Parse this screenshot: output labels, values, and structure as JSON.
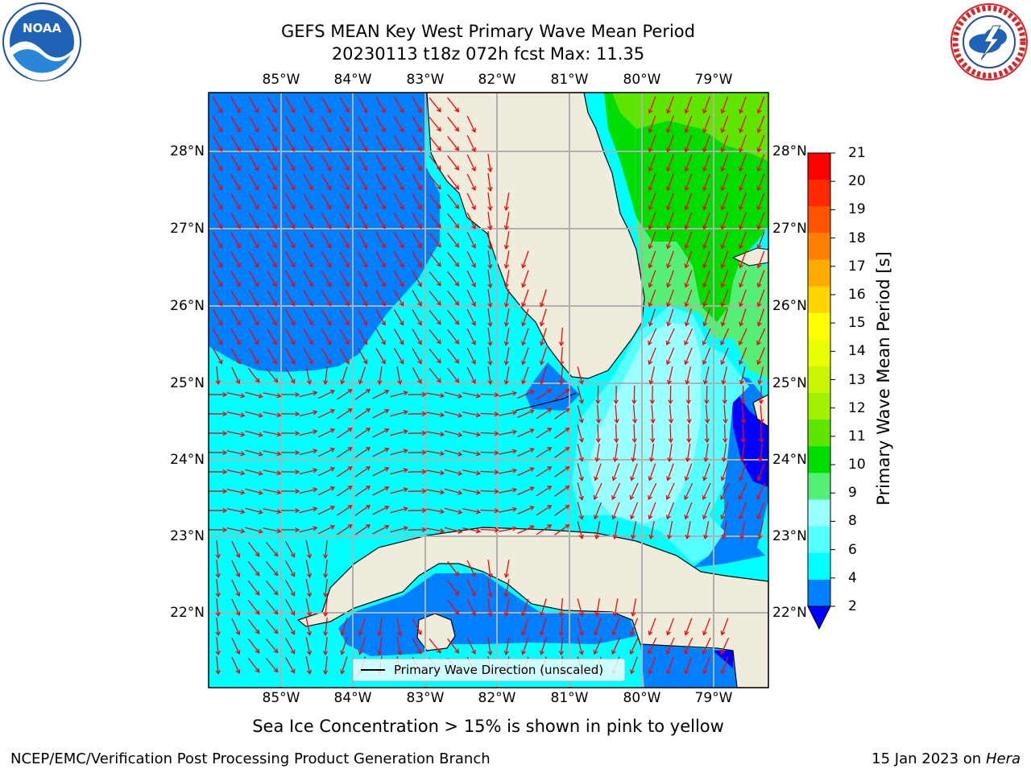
{
  "header": {
    "title_line1": "GEFS MEAN Key West Primary Wave Mean Period",
    "title_line2": "20230113 t18z 072h fcst   Max: 11.35"
  },
  "logos": {
    "left": {
      "icon": "noaa-logo-icon",
      "text": "NOAA"
    },
    "right": {
      "icon": "national-weather-service-logo-icon",
      "text": "NATIONAL WEATHER SERVICE"
    }
  },
  "map": {
    "lon_ticks": [
      "85°W",
      "84°W",
      "83°W",
      "82°W",
      "81°W",
      "80°W",
      "79°W"
    ],
    "lat_ticks": [
      "28°N",
      "27°N",
      "26°N",
      "25°N",
      "24°N",
      "23°N",
      "22°N"
    ],
    "legend_label": "Primary Wave Direction (unscaled)",
    "vector_color": "#ff0000"
  },
  "colorbar": {
    "label": "Primary Wave Mean Period [s]",
    "ticks": [
      "21",
      "20",
      "19",
      "18",
      "17",
      "16",
      "15",
      "14",
      "13",
      "12",
      "11",
      "10",
      "9",
      "8",
      "6",
      "4",
      "2"
    ],
    "colors": [
      "#ff0000",
      "#ff2a00",
      "#ff5500",
      "#ff8000",
      "#ffaa00",
      "#ffd500",
      "#ffff00",
      "#eaff00",
      "#c8f500",
      "#a0f000",
      "#5fe600",
      "#00dd00",
      "#55ee77",
      "#99ffff",
      "#55ffff",
      "#00ffff",
      "#0080ff"
    ],
    "under_color": "#0000ff"
  },
  "palette": {
    "land": "#efecdc",
    "coast": "#000000",
    "grid": "#b0b0b0"
  },
  "footer": {
    "note": "Sea Ice Concentration > 15% is shown in pink to yellow",
    "credit_left": "NCEP/EMC/Verification Post Processing Product Generation Branch",
    "date": "15 Jan 2023 on",
    "host": "Hera"
  }
}
